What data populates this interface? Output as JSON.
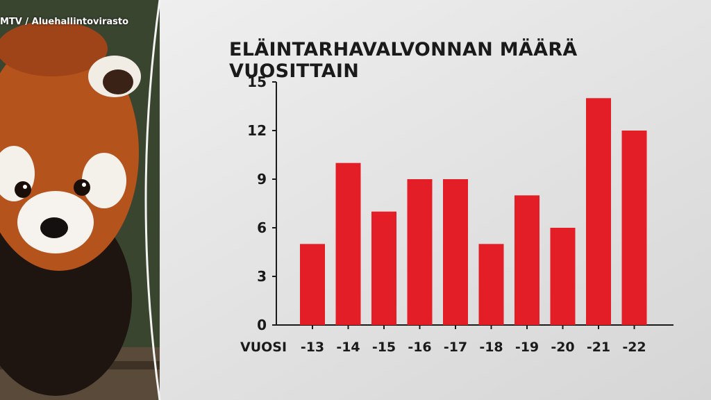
{
  "header": {
    "credit": "MTV / Aluehallintovirasto"
  },
  "colors": {
    "bar": "#e41e26",
    "text": "#1a1a1a",
    "axis": "#1a1a1a",
    "panel": "#dcdcdc"
  },
  "chart_data": {
    "type": "bar",
    "title": "ELÄINTARHAVALVONNAN MÄÄRÄ VUOSITTAIN",
    "xlabel": "VUOSI",
    "ylabel": "",
    "categories": [
      "-13",
      "-14",
      "-15",
      "-16",
      "-17",
      "-18",
      "-19",
      "-20",
      "-21",
      "-22"
    ],
    "values": [
      5,
      10,
      7,
      9,
      9,
      5,
      8,
      6,
      14,
      12
    ],
    "ylim": [
      0,
      15
    ],
    "yticks": [
      0,
      3,
      6,
      9,
      12,
      15
    ],
    "grid": false,
    "legend": "none"
  }
}
